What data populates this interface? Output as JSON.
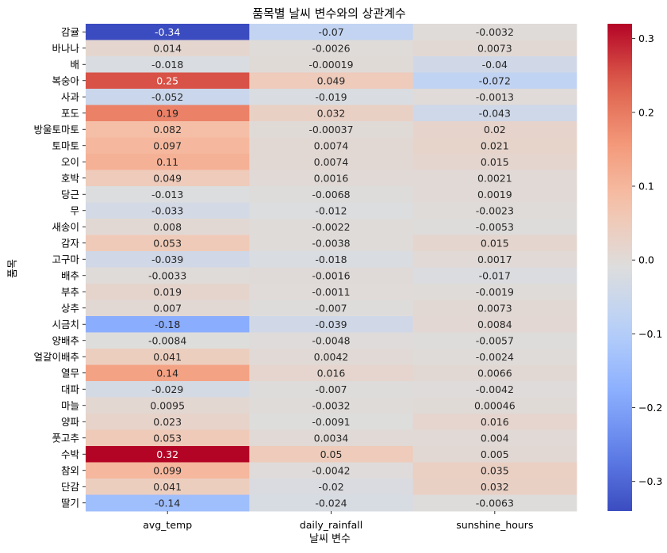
{
  "chart_data": {
    "type": "heatmap",
    "title": "품목별 날씨 변수와의 상관계수",
    "xlabel": "날씨 변수",
    "ylabel": "품목",
    "columns": [
      "avg_temp",
      "daily_rainfall",
      "sunshine_hours"
    ],
    "rows": [
      "감귤",
      "바나나",
      "배",
      "복숭아",
      "사과",
      "포도",
      "방울토마토",
      "토마토",
      "오이",
      "호박",
      "당근",
      "무",
      "새송이",
      "감자",
      "고구마",
      "배추",
      "부추",
      "상추",
      "시금치",
      "양배추",
      "얼갈이배추",
      "열무",
      "대파",
      "마늘",
      "양파",
      "풋고추",
      "수박",
      "참외",
      "단감",
      "딸기"
    ],
    "values": [
      [
        -0.34,
        -0.07,
        -0.0032
      ],
      [
        0.014,
        -0.0026,
        0.0073
      ],
      [
        -0.018,
        -0.00019,
        -0.04
      ],
      [
        0.25,
        0.049,
        -0.072
      ],
      [
        -0.052,
        -0.019,
        -0.0013
      ],
      [
        0.19,
        0.032,
        -0.043
      ],
      [
        0.082,
        -0.00037,
        0.02
      ],
      [
        0.097,
        0.0074,
        0.021
      ],
      [
        0.11,
        0.0074,
        0.015
      ],
      [
        0.049,
        0.0016,
        0.0021
      ],
      [
        -0.013,
        -0.0068,
        0.0019
      ],
      [
        -0.033,
        -0.012,
        -0.0023
      ],
      [
        0.008,
        -0.0022,
        -0.0053
      ],
      [
        0.053,
        -0.0038,
        0.015
      ],
      [
        -0.039,
        -0.018,
        0.0017
      ],
      [
        -0.0033,
        -0.0016,
        -0.017
      ],
      [
        0.019,
        -0.0011,
        -0.0019
      ],
      [
        0.007,
        -0.007,
        0.0073
      ],
      [
        -0.18,
        -0.039,
        0.0084
      ],
      [
        -0.0084,
        -0.0048,
        -0.0057
      ],
      [
        0.041,
        0.0042,
        -0.0024
      ],
      [
        0.14,
        0.016,
        0.0066
      ],
      [
        -0.029,
        -0.007,
        -0.0042
      ],
      [
        0.0095,
        -0.0032,
        0.00046
      ],
      [
        0.023,
        -0.0091,
        0.016
      ],
      [
        0.053,
        0.0034,
        0.004
      ],
      [
        0.32,
        0.05,
        0.005
      ],
      [
        0.099,
        -0.0042,
        0.035
      ],
      [
        0.041,
        -0.02,
        0.032
      ],
      [
        -0.14,
        -0.024,
        -0.0063
      ]
    ],
    "labels": [
      [
        "-0.34",
        "-0.07",
        "-0.0032"
      ],
      [
        "0.014",
        "-0.0026",
        "0.0073"
      ],
      [
        "-0.018",
        "-0.00019",
        "-0.04"
      ],
      [
        "0.25",
        "0.049",
        "-0.072"
      ],
      [
        "-0.052",
        "-0.019",
        "-0.0013"
      ],
      [
        "0.19",
        "0.032",
        "-0.043"
      ],
      [
        "0.082",
        "-0.00037",
        "0.02"
      ],
      [
        "0.097",
        "0.0074",
        "0.021"
      ],
      [
        "0.11",
        "0.0074",
        "0.015"
      ],
      [
        "0.049",
        "0.0016",
        "0.0021"
      ],
      [
        "-0.013",
        "-0.0068",
        "0.0019"
      ],
      [
        "-0.033",
        "-0.012",
        "-0.0023"
      ],
      [
        "0.008",
        "-0.0022",
        "-0.0053"
      ],
      [
        "0.053",
        "-0.0038",
        "0.015"
      ],
      [
        "-0.039",
        "-0.018",
        "0.0017"
      ],
      [
        "-0.0033",
        "-0.0016",
        "-0.017"
      ],
      [
        "0.019",
        "-0.0011",
        "-0.0019"
      ],
      [
        "0.007",
        "-0.007",
        "0.0073"
      ],
      [
        "-0.18",
        "-0.039",
        "0.0084"
      ],
      [
        "-0.0084",
        "-0.0048",
        "-0.0057"
      ],
      [
        "0.041",
        "0.0042",
        "-0.0024"
      ],
      [
        "0.14",
        "0.016",
        "0.0066"
      ],
      [
        "-0.029",
        "-0.007",
        "-0.0042"
      ],
      [
        "0.0095",
        "-0.0032",
        "0.00046"
      ],
      [
        "0.023",
        "-0.0091",
        "0.016"
      ],
      [
        "0.053",
        "0.0034",
        "0.004"
      ],
      [
        "0.32",
        "0.05",
        "0.005"
      ],
      [
        "0.099",
        "-0.0042",
        "0.035"
      ],
      [
        "0.041",
        "-0.02",
        "0.032"
      ],
      [
        "-0.14",
        "-0.024",
        "-0.0063"
      ]
    ],
    "colormap": "coolwarm",
    "vmin": -0.34,
    "vmax": 0.32,
    "colorbar": {
      "ticks": [
        0.3,
        0.2,
        0.1,
        0.0,
        -0.1,
        -0.2,
        -0.3
      ],
      "tick_labels": [
        "0.3",
        "0.2",
        "0.1",
        "0.0",
        "−0.1",
        "−0.2",
        "−0.3"
      ],
      "placement": "right"
    },
    "grid": false
  }
}
